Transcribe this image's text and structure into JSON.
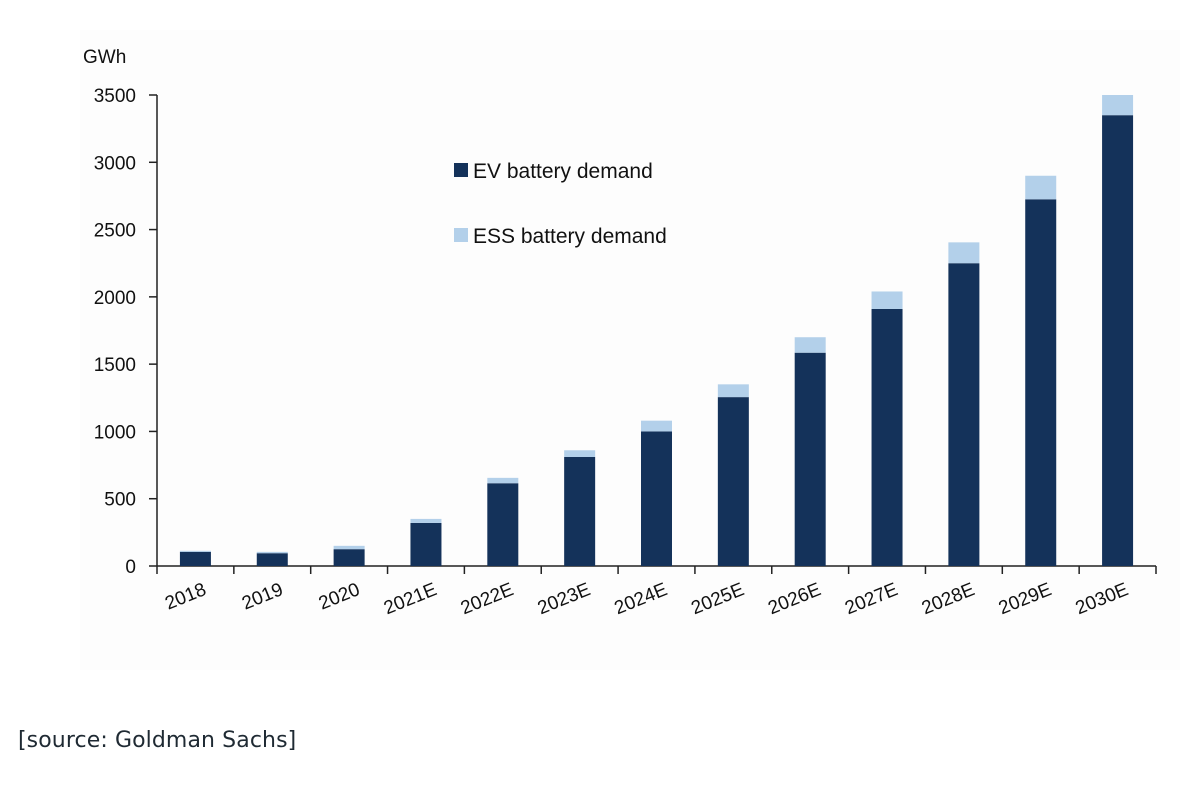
{
  "chart_data": {
    "type": "bar",
    "stacked": true,
    "unit_label": "GWh",
    "categories": [
      "2018",
      "2019",
      "2020",
      "2021E",
      "2022E",
      "2023E",
      "2024E",
      "2025E",
      "2026E",
      "2027E",
      "2028E",
      "2029E",
      "2030E"
    ],
    "series": [
      {
        "name": "EV battery demand",
        "color": "#14325a",
        "values": [
          105,
          95,
          125,
          320,
          615,
          810,
          1000,
          1255,
          1585,
          1910,
          2250,
          2725,
          3350
        ]
      },
      {
        "name": "ESS battery demand",
        "color": "#b3d0ea",
        "values": [
          8,
          10,
          25,
          30,
          40,
          50,
          80,
          95,
          115,
          130,
          155,
          175,
          150
        ]
      }
    ],
    "y_ticks": [
      "0",
      "500",
      "1000",
      "1500",
      "2000",
      "2500",
      "3000",
      "3500"
    ],
    "ylim": [
      0,
      3500
    ],
    "grid": false,
    "legend_position": "top-center"
  },
  "source_note": "[source: Goldman Sachs]"
}
